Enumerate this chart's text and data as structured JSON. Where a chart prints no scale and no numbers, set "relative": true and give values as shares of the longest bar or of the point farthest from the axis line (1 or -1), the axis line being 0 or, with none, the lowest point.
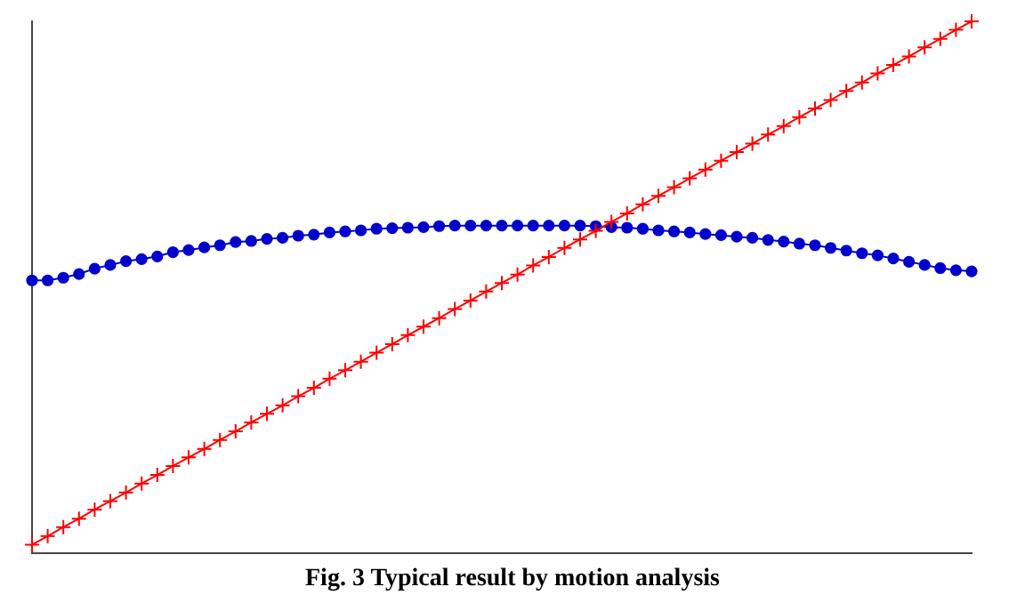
{
  "chart_data": {
    "type": "line",
    "relative": true,
    "grid": false,
    "legend": false,
    "line_style": "solid",
    "tick_labels": false,
    "annotations": [
      "Fig. 3 Typical result by motion analysis"
    ],
    "categories": [
      null,
      null,
      null,
      null,
      null,
      null,
      null,
      null,
      null,
      null,
      null,
      null,
      null,
      null,
      null,
      null,
      null,
      null,
      null,
      null,
      null,
      null,
      null,
      null,
      null,
      null,
      null,
      null,
      null,
      null,
      null,
      null,
      null,
      null,
      null,
      null,
      null,
      null,
      null,
      null,
      null,
      null,
      null,
      null,
      null,
      null,
      null,
      null,
      null,
      null,
      null,
      null,
      null,
      null,
      null,
      null,
      null,
      null,
      null,
      null,
      null
    ],
    "series": [
      {
        "color": "#ff0000",
        "marker": "cross",
        "values": [
          0.016,
          0.032,
          0.049,
          0.065,
          0.082,
          0.098,
          0.114,
          0.131,
          0.147,
          0.164,
          0.18,
          0.196,
          0.213,
          0.229,
          0.246,
          0.262,
          0.278,
          0.295,
          0.311,
          0.328,
          0.344,
          0.36,
          0.377,
          0.393,
          0.41,
          0.426,
          0.442,
          0.459,
          0.475,
          0.492,
          0.508,
          0.524,
          0.541,
          0.557,
          0.574,
          0.59,
          0.606,
          0.623,
          0.639,
          0.656,
          0.672,
          0.688,
          0.705,
          0.721,
          0.738,
          0.754,
          0.77,
          0.787,
          0.803,
          0.82,
          0.836,
          0.852,
          0.869,
          0.885,
          0.902,
          0.918,
          0.934,
          0.951,
          0.967,
          0.984,
          1.0
        ]
      },
      {
        "color": "#0000cc",
        "marker": "circle",
        "values": [
          0.513,
          0.513,
          0.518,
          0.525,
          0.535,
          0.542,
          0.549,
          0.553,
          0.558,
          0.566,
          0.57,
          0.575,
          0.579,
          0.585,
          0.587,
          0.591,
          0.593,
          0.597,
          0.599,
          0.603,
          0.605,
          0.607,
          0.61,
          0.611,
          0.612,
          0.613,
          0.615,
          0.616,
          0.616,
          0.616,
          0.616,
          0.616,
          0.616,
          0.616,
          0.616,
          0.616,
          0.615,
          0.613,
          0.612,
          0.61,
          0.607,
          0.605,
          0.603,
          0.6,
          0.598,
          0.595,
          0.593,
          0.589,
          0.586,
          0.582,
          0.579,
          0.574,
          0.569,
          0.564,
          0.56,
          0.554,
          0.548,
          0.542,
          0.536,
          0.532,
          0.53
        ]
      }
    ]
  }
}
